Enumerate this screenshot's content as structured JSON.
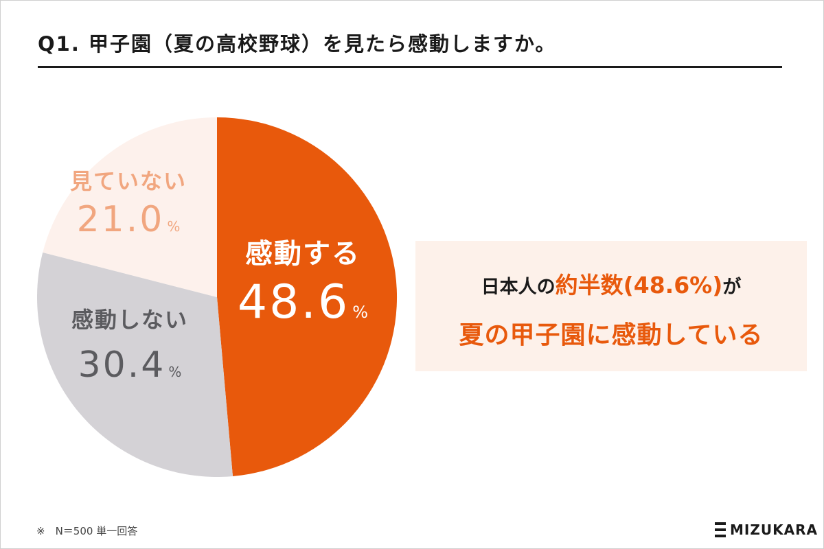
{
  "title": "Q1. 甲子園（夏の高校野球）を見たら感動しますか。",
  "chart_data": {
    "type": "pie",
    "slices": [
      {
        "label": "感動する",
        "value": 48.6,
        "value_text": "48.6",
        "unit": "%",
        "color": "#e8590c",
        "label_color": "#ffffff"
      },
      {
        "label": "感動しない",
        "value": 30.4,
        "value_text": "30.4",
        "unit": "%",
        "color": "#d4d2d6",
        "label_color": "#5b5b5f"
      },
      {
        "label": "見ていない",
        "value": 21.0,
        "value_text": "21.0",
        "unit": "%",
        "color": "#fdf1ec",
        "label_color": "#f1a67f"
      }
    ],
    "start": "top",
    "direction": "clockwise"
  },
  "callout": {
    "line1_prefix": "日本人の",
    "line1_highlight": "約半数(48.6%)",
    "line1_suffix": "が",
    "line2": "夏の甲子園に感動している"
  },
  "footnote": "※　N＝500 単一回答",
  "brand": "MIZUKARA",
  "colors": {
    "accent": "#e8590c",
    "callout_bg": "#fdf1ea"
  }
}
